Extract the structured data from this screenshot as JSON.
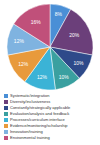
{
  "chart_data": {
    "type": "pie",
    "categories": [
      "Systematic/integration",
      "Diversity/inclusiveness",
      "Constantly/strategically applicable",
      "Evaluation/analysis and feedback",
      "Processes/curriculum interface",
      "Evidence/monitoring/scholarship",
      "Innovation/training",
      "Environmental training"
    ],
    "values": [
      8,
      20,
      10,
      10,
      12,
      12,
      12,
      16
    ],
    "value_labels": [
      "8%",
      "20%",
      "10%",
      "10%",
      "12%",
      "12%",
      "12%",
      "16%"
    ],
    "colors": [
      "#4a8fd6",
      "#6b3f7a",
      "#2e4a8a",
      "#3aa0a0",
      "#3bb3d6",
      "#e89a3c",
      "#7fb3e0",
      "#c0507a"
    ],
    "data_labels": true
  }
}
